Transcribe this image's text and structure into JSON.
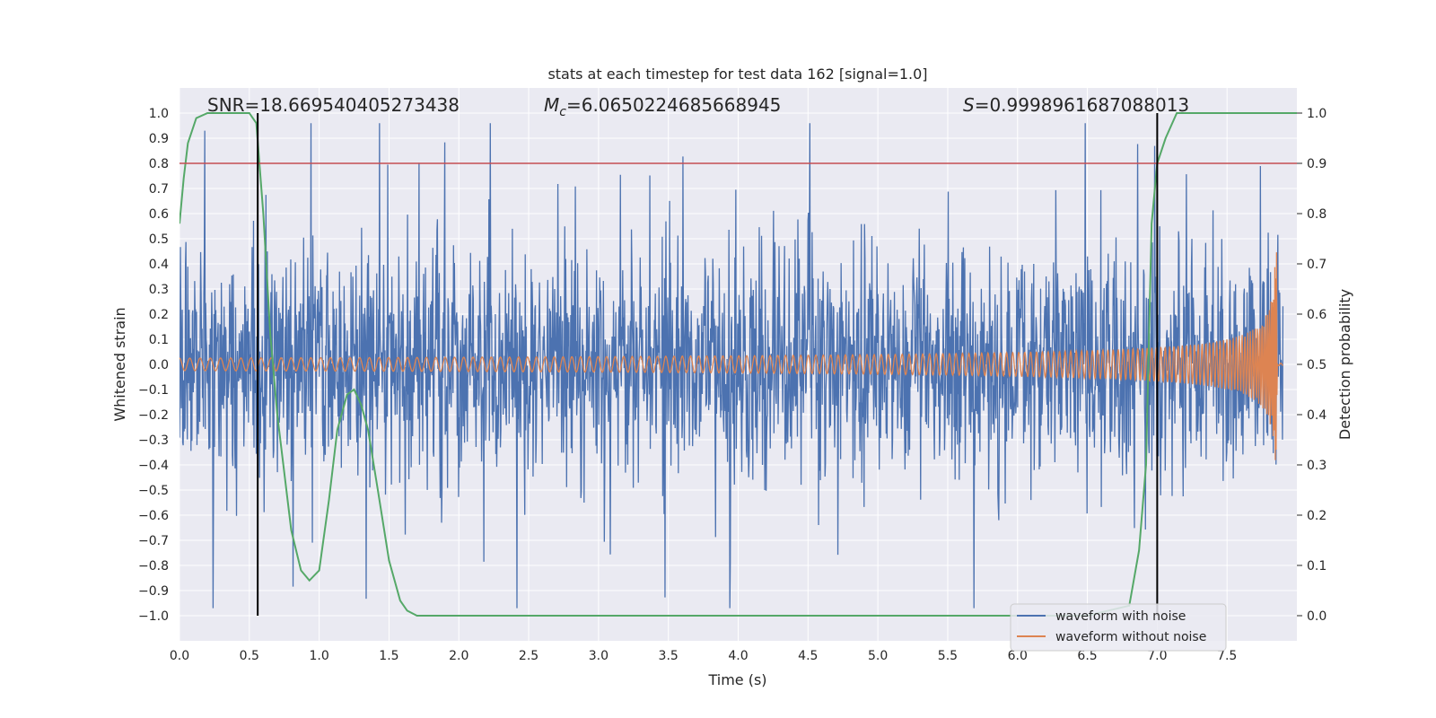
{
  "chart_data": {
    "type": "line",
    "title": "stats at each timestep for test data 162 [signal=1.0]",
    "xlabel": "Time (s)",
    "ylabel": "Whitened strain",
    "y2label": "Detection probability",
    "xlim": [
      0.0,
      8.0
    ],
    "ylim": [
      -1.1,
      1.1
    ],
    "y2lim": [
      -0.05,
      1.05
    ],
    "x_ticks": [
      "0.0",
      "0.5",
      "1.0",
      "1.5",
      "2.0",
      "2.5",
      "3.0",
      "3.5",
      "4.0",
      "4.5",
      "5.0",
      "5.5",
      "6.0",
      "6.5",
      "7.0",
      "7.5"
    ],
    "y_ticks": [
      "1.0",
      "0.9",
      "0.8",
      "0.7",
      "0.6",
      "0.5",
      "0.4",
      "0.3",
      "0.2",
      "0.1",
      "0.0",
      "−0.1",
      "−0.2",
      "−0.3",
      "−0.4",
      "−0.5",
      "−0.6",
      "−0.7",
      "−0.8",
      "−0.9",
      "−1.0"
    ],
    "y2_ticks": [
      "1.0",
      "0.9",
      "0.8",
      "0.7",
      "0.6",
      "0.5",
      "0.4",
      "0.3",
      "0.2",
      "0.1",
      "0.0"
    ],
    "annotations": {
      "snr": "SNR=18.669540405273438",
      "mc_symbol": "M",
      "mc_sub": "c",
      "mc_value": "=6.0650224685668945",
      "s_symbol": "S",
      "s_value": "=0.9998961687088013"
    },
    "threshold_y2": 0.9,
    "vertical_lines_x": [
      0.56,
      7.0
    ],
    "series": [
      {
        "name": "waveform with noise",
        "color": "#4c72b0",
        "axis": "left",
        "kind": "noise",
        "amplitude_envelope": [
          0.5,
          1.0
        ],
        "duration": 7.9
      },
      {
        "name": "waveform without noise",
        "color": "#dd8452",
        "axis": "left",
        "kind": "chirp",
        "start_amplitude": 0.025,
        "peak_amplitude": 0.47,
        "peak_time": 7.86,
        "end_time": 7.9
      },
      {
        "name": "detection probability",
        "color": "#55a868",
        "axis": "right",
        "x": [
          0.0,
          0.03,
          0.06,
          0.12,
          0.2,
          0.35,
          0.5,
          0.55,
          0.6,
          0.65,
          0.7,
          0.8,
          0.87,
          0.93,
          1.0,
          1.07,
          1.13,
          1.2,
          1.25,
          1.3,
          1.35,
          1.42,
          1.5,
          1.58,
          1.63,
          1.7,
          2.0,
          3.0,
          4.0,
          5.0,
          6.0,
          6.5,
          6.8,
          6.87,
          6.92,
          6.96,
          7.0,
          7.06,
          7.14,
          8.0
        ],
        "y": [
          0.78,
          0.87,
          0.94,
          0.99,
          1.0,
          1.0,
          1.0,
          0.98,
          0.8,
          0.56,
          0.4,
          0.17,
          0.09,
          0.07,
          0.09,
          0.23,
          0.37,
          0.44,
          0.45,
          0.42,
          0.37,
          0.25,
          0.11,
          0.03,
          0.01,
          0.0,
          0.0,
          0.0,
          0.0,
          0.0,
          0.0,
          0.0,
          0.02,
          0.13,
          0.3,
          0.78,
          0.9,
          0.95,
          1.0,
          1.0
        ]
      }
    ],
    "legend": {
      "placement": "lower-right",
      "entries": [
        "waveform with noise",
        "waveform without noise"
      ]
    },
    "grid": true
  },
  "colors": {
    "background": "#eaeaf2",
    "grid": "#ffffff",
    "threshold": "#c44e52",
    "vline": "#000000"
  }
}
